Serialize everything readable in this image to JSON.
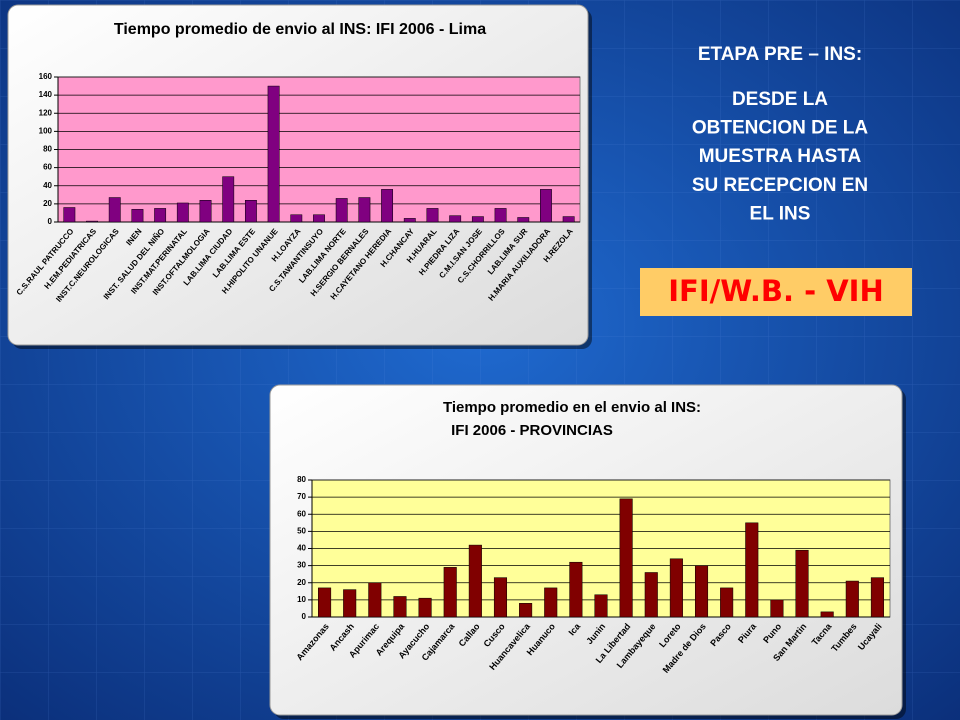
{
  "heading": "ETAPA PRE – INS:",
  "description": [
    "DESDE LA",
    "OBTENCION DE LA",
    "MUESTRA HASTA",
    "SU RECEPCION EN",
    "EL INS"
  ],
  "badge": "IFI/W.B. - VIH",
  "chart_data": [
    {
      "type": "bar",
      "title": "Tiempo promedio de envio al INS: IFI 2006 - Lima",
      "categories": [
        "C.S.RAUL PATRUCCO",
        "H.EM.PEDIATRICAS",
        "INST.C.NEUROLOGICAS",
        "INEN",
        "INST. SALUD DEL NIÑO",
        "INST.MAT.PERINATAL",
        "INST.OFTALMOLOGIA",
        "LAB.LIMA CIUDAD",
        "LAB.LIMA ESTE",
        "H.HIPOLITO UNANUE",
        "H.LOAYZA",
        "C.S.TAWANTINSUYO",
        "LAB.LIMA NORTE",
        "H.SERGIO BERNALES",
        "H.CAYETANO HEREDIA",
        "H.CHANCAY",
        "H.HUARAL",
        "H.PIEDRA LIZA",
        "C.M.I.SAN JOSE",
        "C.S.CHORRILLOS",
        "LAB.LIMA SUR",
        "H.MARIA AUXILIADORA",
        "H.REZOLA"
      ],
      "values": [
        16,
        1,
        27,
        14,
        15,
        21,
        24,
        50,
        24,
        150,
        8,
        8,
        26,
        27,
        36,
        4,
        15,
        7,
        6,
        15,
        5,
        36,
        6
      ],
      "color": "#800080",
      "plot_color": "#ff99cc",
      "ylim": [
        0,
        160
      ],
      "yticks": [
        0,
        20,
        40,
        60,
        80,
        100,
        120,
        140,
        160
      ],
      "grid": true
    },
    {
      "type": "bar",
      "title": "Tiempo promedio en el envio al INS:",
      "subtitle": "IFI 2006 -  PROVINCIAS",
      "categories": [
        "Amazonas",
        "Ancash",
        "Apurimac",
        "Arequipa",
        "Ayacucho",
        "Cajamarca",
        "Callao",
        "Cusco",
        "Huancavelica",
        "Huanuco",
        "Ica",
        "Junin",
        "La Libertad",
        "Lambayeque",
        "Loreto",
        "Madre de Dios",
        "Pasco",
        "Piura",
        "Puno",
        "San Martin",
        "Tacna",
        "Tumbes",
        "Ucayali"
      ],
      "values": [
        17,
        16,
        20,
        12,
        11,
        29,
        42,
        23,
        8,
        17,
        32,
        13,
        69,
        26,
        34,
        30,
        17,
        55,
        10,
        39,
        3,
        21,
        23
      ],
      "color": "#800000",
      "plot_color": "#ffff99",
      "ylim": [
        0,
        80
      ],
      "yticks": [
        0,
        10,
        20,
        30,
        40,
        50,
        60,
        70,
        80
      ],
      "grid": true
    }
  ]
}
